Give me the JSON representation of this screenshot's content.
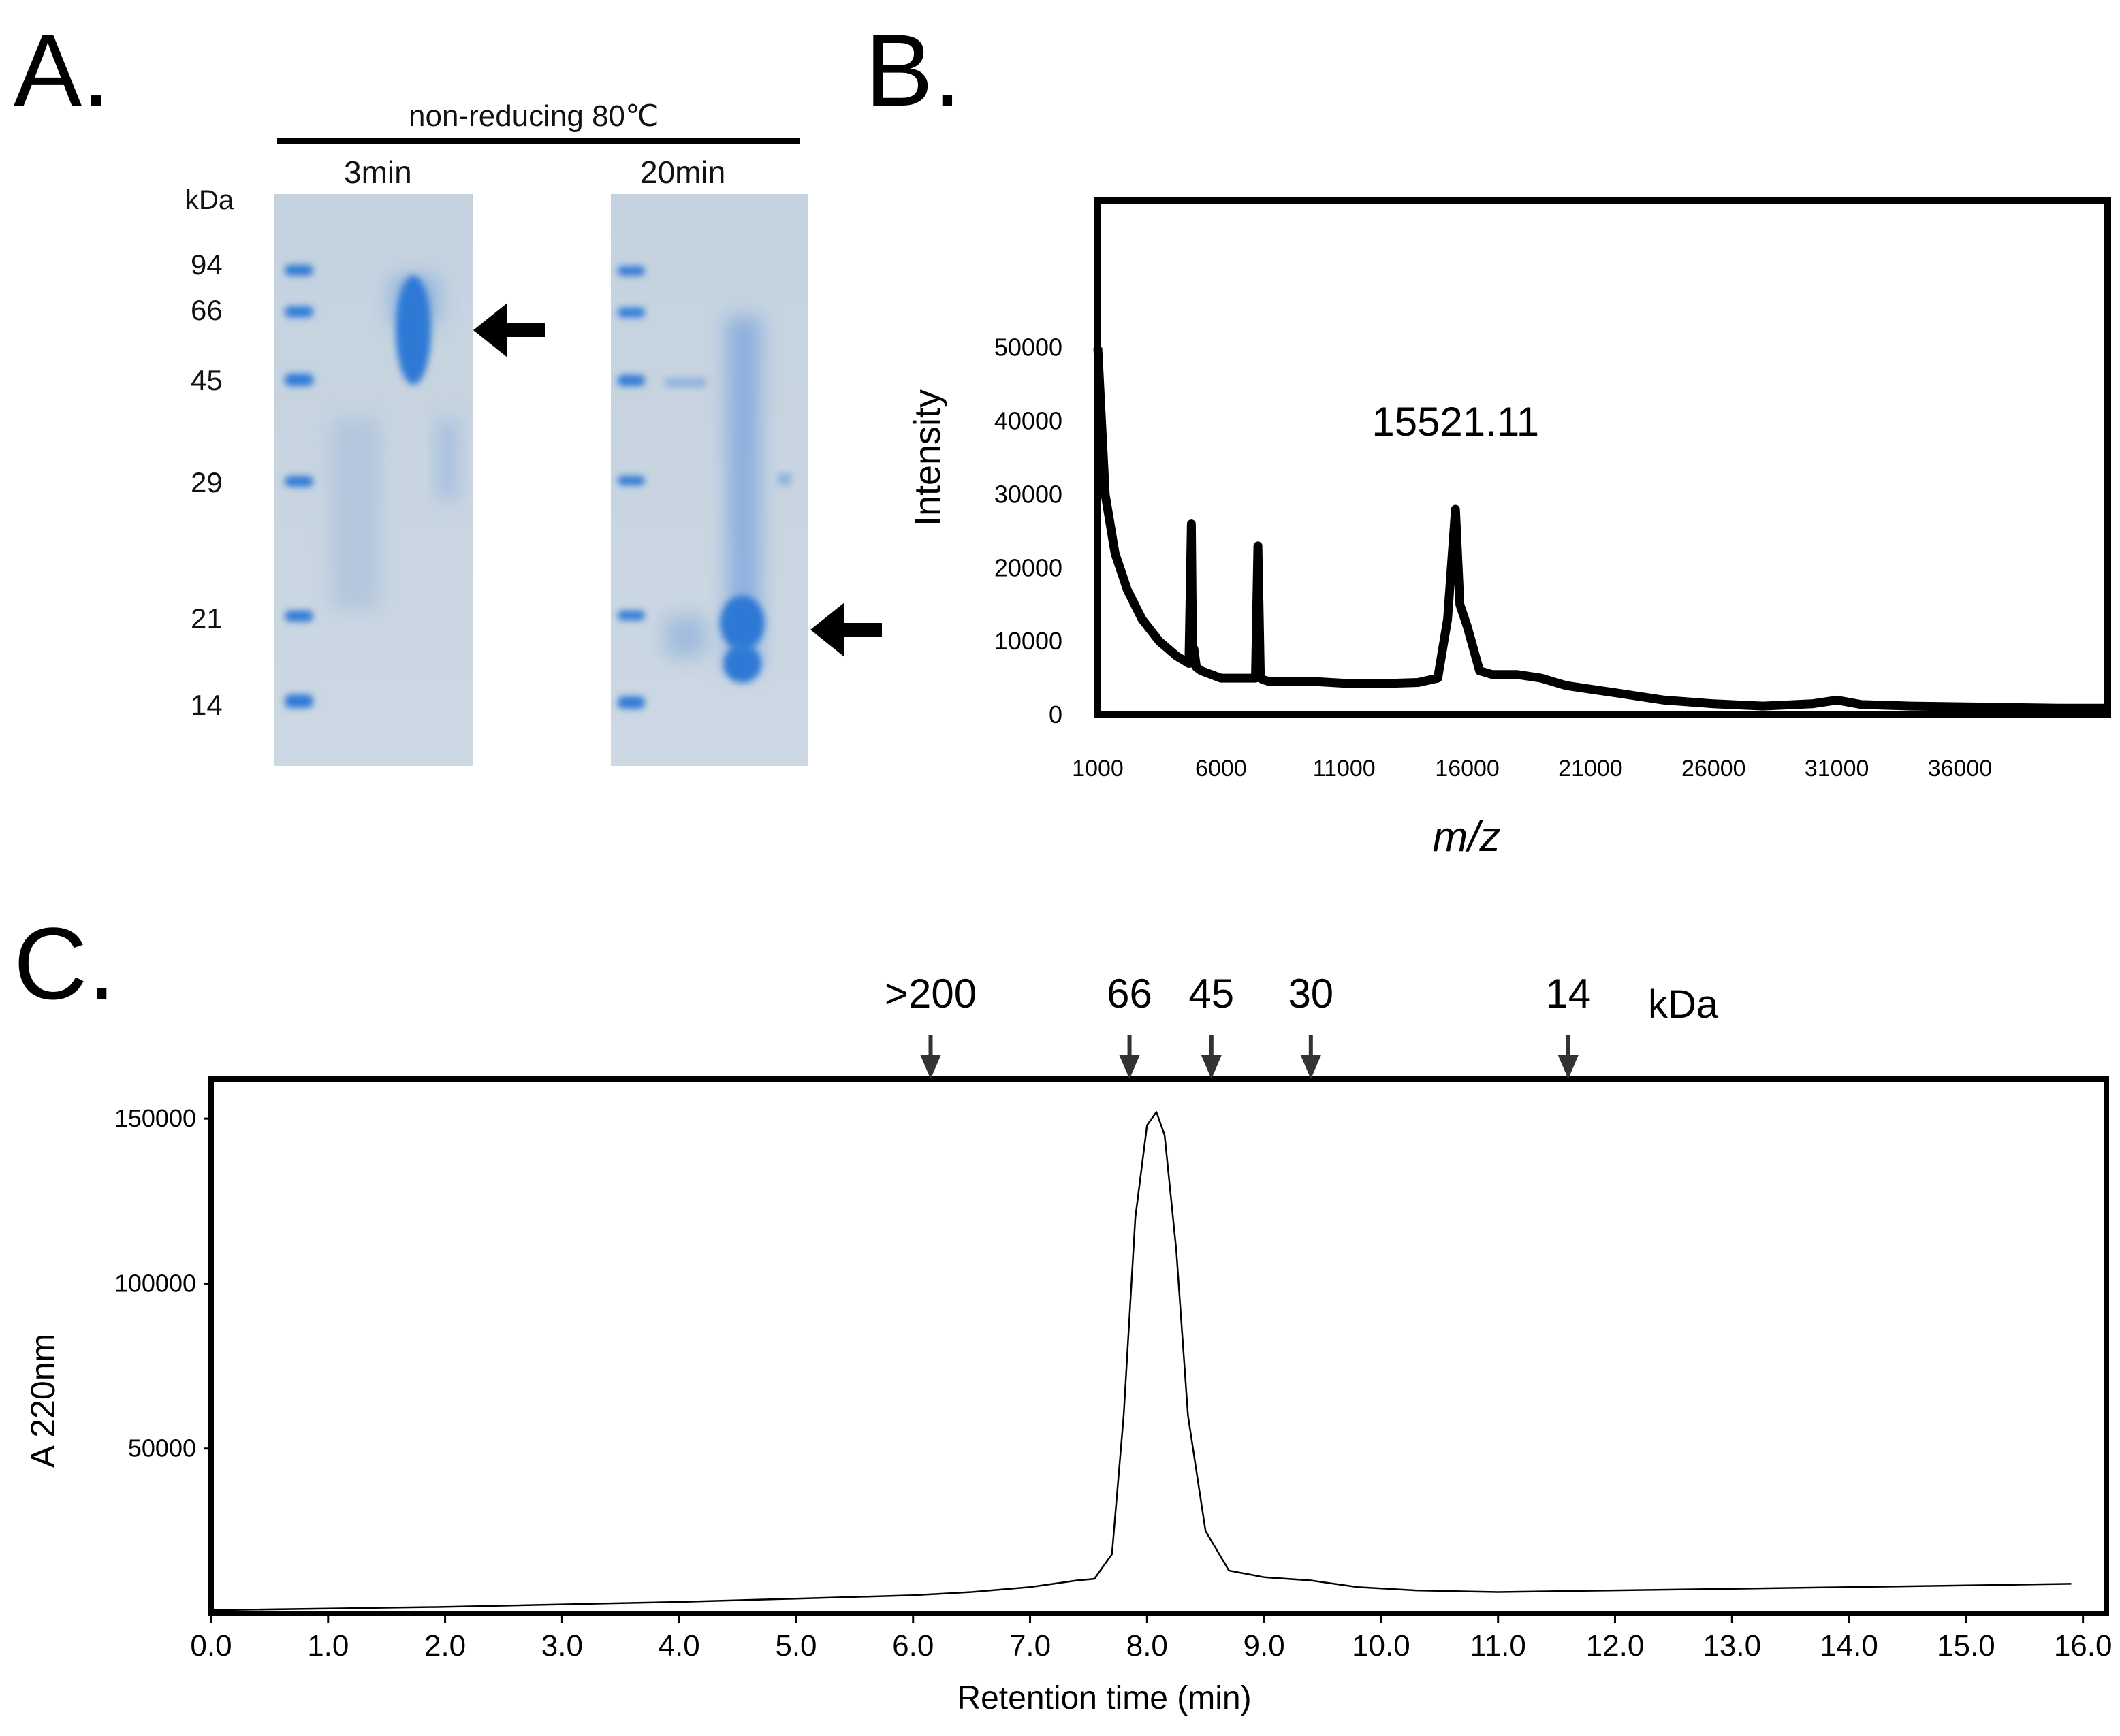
{
  "panels": {
    "a": {
      "letter": "A.",
      "condition": "non-reducing 80℃",
      "lanes": [
        "3min",
        "20min"
      ],
      "unit": "kDa",
      "markers": [
        "94",
        "66",
        "45",
        "29",
        "21",
        "14"
      ]
    },
    "b": {
      "letter": "B."
    },
    "c": {
      "letter": "C."
    }
  },
  "colors": {
    "stain": "#2f79d6",
    "gel": "#c9d6e1",
    "line": "#000000"
  },
  "chart_data": [
    {
      "id": "mass_spectrum",
      "type": "line",
      "xlabel": "m/z",
      "ylabel": "Intensity",
      "xlim": [
        1000,
        42000
      ],
      "ylim": [
        0,
        70000
      ],
      "xticks": [
        "1000",
        "6000",
        "11000",
        "16000",
        "21000",
        "26000",
        "31000",
        "36000"
      ],
      "xtick_values": [
        1000,
        6000,
        11000,
        16000,
        21000,
        26000,
        31000,
        36000
      ],
      "yticks": [
        "0",
        "10000",
        "20000",
        "30000",
        "40000",
        "50000"
      ],
      "ytick_values": [
        0,
        10000,
        20000,
        30000,
        40000,
        50000
      ],
      "annotations": [
        {
          "text": "15521.11",
          "x": 15521,
          "y": 28000
        }
      ],
      "series": [
        {
          "name": "spectrum",
          "x": [
            1000,
            1300,
            1700,
            2200,
            2800,
            3500,
            4200,
            4700,
            4800,
            4850,
            4900,
            5000,
            5200,
            5600,
            6000,
            6500,
            7000,
            7400,
            7500,
            7600,
            7700,
            8000,
            9000,
            10000,
            11000,
            12000,
            13000,
            14000,
            14800,
            15200,
            15521,
            15700,
            16000,
            16500,
            17000,
            18000,
            19000,
            20000,
            21000,
            22000,
            24000,
            26000,
            28000,
            30000,
            31000,
            32000,
            34000,
            36000,
            38000,
            40000,
            42000
          ],
          "values": [
            50000,
            30000,
            22000,
            17000,
            13000,
            10000,
            8000,
            7000,
            26000,
            7000,
            9000,
            6500,
            6000,
            5500,
            5000,
            5000,
            5000,
            5000,
            23000,
            5000,
            4800,
            4500,
            4500,
            4500,
            4300,
            4300,
            4300,
            4400,
            5000,
            13000,
            28000,
            15000,
            12000,
            6000,
            5500,
            5500,
            5000,
            4000,
            3500,
            3000,
            2000,
            1500,
            1200,
            1500,
            2000,
            1400,
            1200,
            1100,
            1000,
            900,
            900
          ]
        }
      ]
    },
    {
      "id": "sec_chromatogram",
      "type": "line",
      "xlabel": "Retention time (min)",
      "ylabel": "A 220nm",
      "xlim": [
        0,
        16.2
      ],
      "ylim": [
        0,
        162000
      ],
      "xticks": [
        "0.0",
        "1.0",
        "2.0",
        "3.0",
        "4.0",
        "5.0",
        "6.0",
        "7.0",
        "8.0",
        "9.0",
        "10.0",
        "11.0",
        "12.0",
        "13.0",
        "14.0",
        "15.0",
        "16.0"
      ],
      "xtick_values": [
        0,
        1,
        2,
        3,
        4,
        5,
        6,
        7,
        8,
        9,
        10,
        11,
        12,
        13,
        14,
        15,
        16
      ],
      "yticks": [
        "50000",
        "100000",
        "150000"
      ],
      "ytick_values": [
        50000,
        100000,
        150000
      ],
      "markers_unit": "kDa",
      "markers": [
        {
          "label": ">200",
          "x": 6.15
        },
        {
          "label": "66",
          "x": 7.85
        },
        {
          "label": "45",
          "x": 8.55
        },
        {
          "label": "30",
          "x": 9.4
        },
        {
          "label": "14",
          "x": 11.6
        }
      ],
      "series": [
        {
          "name": "A220",
          "x": [
            0,
            2,
            4,
            5,
            6,
            6.5,
            7,
            7.2,
            7.4,
            7.55,
            7.7,
            7.8,
            7.9,
            8.0,
            8.08,
            8.15,
            8.25,
            8.35,
            8.5,
            8.7,
            9.0,
            9.4,
            9.8,
            10.3,
            11,
            12,
            13,
            14,
            15,
            15.9
          ],
          "values": [
            1000,
            2000,
            3500,
            4500,
            5500,
            6500,
            8000,
            9000,
            10000,
            10500,
            18000,
            60000,
            120000,
            148000,
            152000,
            145000,
            110000,
            60000,
            25000,
            13000,
            11000,
            10000,
            8000,
            7000,
            6500,
            7000,
            7500,
            8000,
            8500,
            9000
          ]
        }
      ]
    }
  ]
}
